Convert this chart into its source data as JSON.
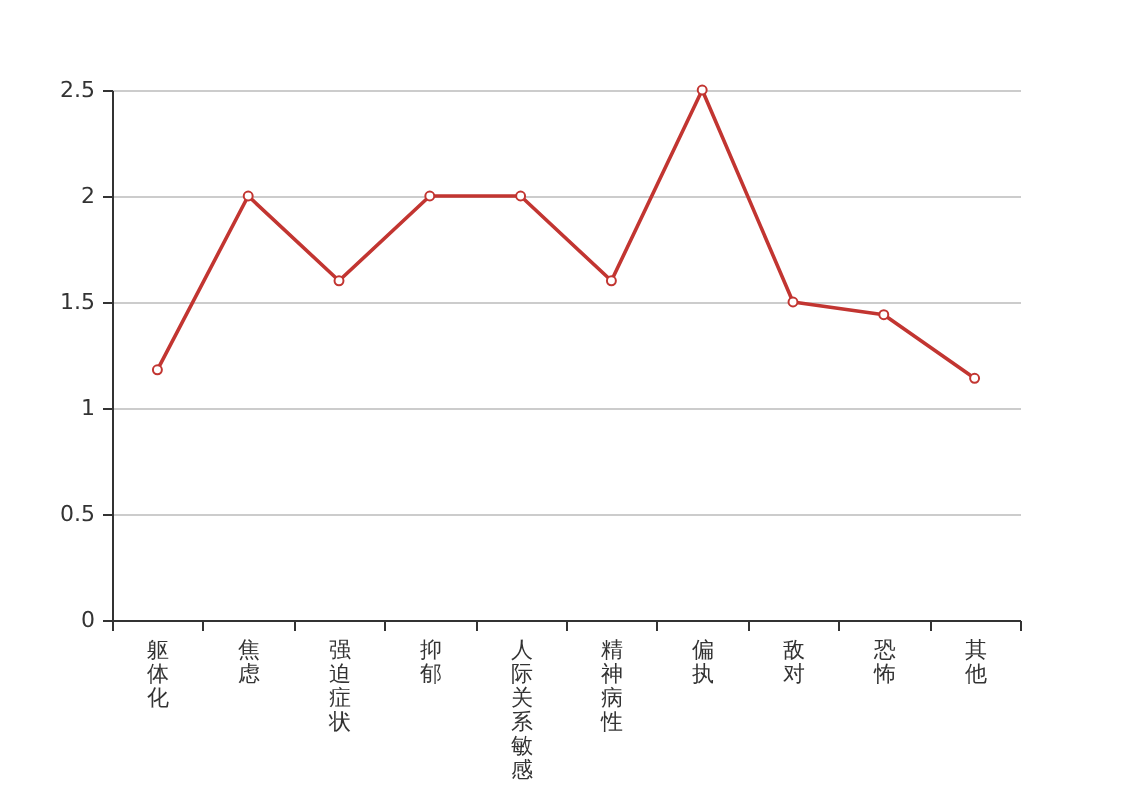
{
  "chart_data": {
    "type": "line",
    "categories": [
      "躯体化",
      "焦虑",
      "强迫症状",
      "抑郁",
      "人际关系敏感",
      "精神病性",
      "偏执",
      "敌对",
      "恐怖",
      "其他"
    ],
    "series": [
      {
        "color": "#c23531",
        "values": [
          1.18,
          2,
          1.6,
          2,
          2,
          1.6,
          2.5,
          1.5,
          1.44,
          1.14
        ]
      }
    ],
    "ylim": [
      0,
      2.5
    ],
    "yticks": [
      0,
      0.5,
      1,
      1.5,
      2,
      2.5
    ],
    "grid": "y",
    "marker": "circle",
    "line_style": "solid"
  }
}
